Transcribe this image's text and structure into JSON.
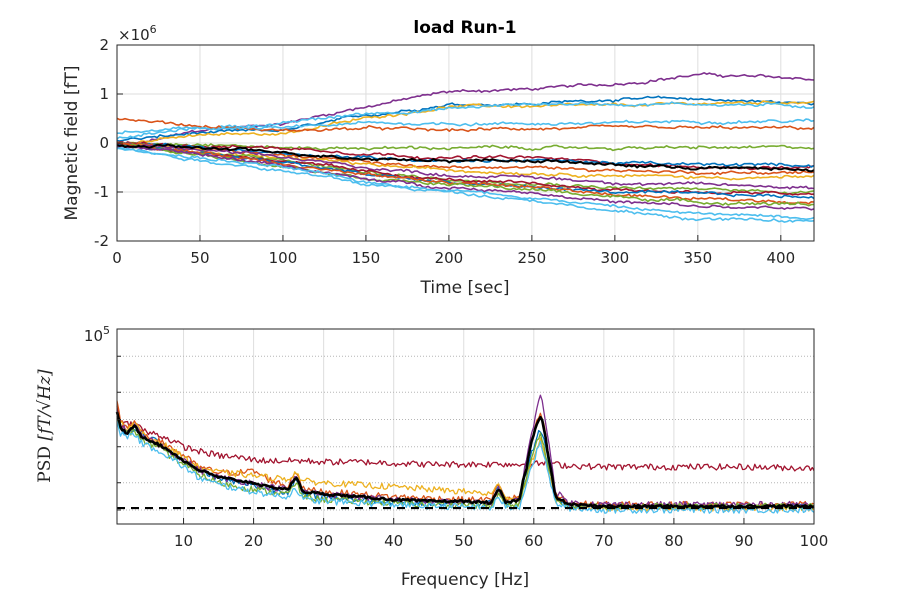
{
  "chart_data": [
    {
      "type": "line",
      "title": "load Run-1",
      "xlabel": "Time [sec]",
      "ylabel": "Magnetic field [fT]",
      "exponent_label": "×10",
      "exponent_power": "6",
      "xlim": [
        0,
        420
      ],
      "ylim": [
        -2,
        2
      ],
      "xticks": [
        0,
        50,
        100,
        150,
        200,
        250,
        300,
        350,
        400
      ],
      "yticks": [
        -2,
        -1,
        0,
        1,
        2
      ],
      "grid": true,
      "legend": "none",
      "x": [
        0,
        50,
        100,
        150,
        200,
        250,
        300,
        350,
        420
      ],
      "series": [
        {
          "color": "#7E2F8E",
          "values": [
            -0.1,
            0.25,
            0.4,
            0.75,
            1.05,
            1.1,
            1.2,
            1.4,
            1.3
          ]
        },
        {
          "color": "#0072BD",
          "values": [
            0.05,
            0.2,
            0.25,
            0.55,
            0.8,
            0.8,
            0.9,
            0.9,
            0.8
          ]
        },
        {
          "color": "#EDB120",
          "values": [
            0.0,
            0.15,
            0.2,
            0.5,
            0.75,
            0.75,
            0.75,
            0.8,
            0.85
          ]
        },
        {
          "color": "#4DBEEE",
          "values": [
            0.1,
            0.3,
            0.4,
            0.6,
            0.7,
            0.8,
            0.8,
            0.8,
            0.75
          ]
        },
        {
          "color": "#D95319",
          "values": [
            0.5,
            0.35,
            0.25,
            0.3,
            0.25,
            0.3,
            0.3,
            0.3,
            0.3
          ]
        },
        {
          "color": "#4DBEEE",
          "values": [
            0.2,
            0.3,
            0.3,
            0.4,
            0.4,
            0.4,
            0.4,
            0.45,
            0.45
          ]
        },
        {
          "color": "#77AC30",
          "values": [
            0.0,
            0.0,
            -0.1,
            -0.1,
            -0.1,
            -0.1,
            -0.1,
            -0.1,
            -0.1
          ]
        },
        {
          "color": "#A2142F",
          "values": [
            0.0,
            -0.05,
            -0.1,
            -0.2,
            -0.3,
            -0.3,
            -0.4,
            -0.5,
            -0.5
          ]
        },
        {
          "color": "#0072BD",
          "values": [
            0.0,
            -0.1,
            -0.2,
            -0.3,
            -0.35,
            -0.35,
            -0.4,
            -0.45,
            -0.45
          ]
        },
        {
          "color": "#D95319",
          "values": [
            0.0,
            -0.1,
            -0.25,
            -0.4,
            -0.5,
            -0.5,
            -0.55,
            -0.6,
            -0.6
          ]
        },
        {
          "color": "#EDB120",
          "values": [
            0.0,
            -0.15,
            -0.3,
            -0.45,
            -0.55,
            -0.6,
            -0.65,
            -0.7,
            -0.7
          ]
        },
        {
          "color": "#7E2F8E",
          "values": [
            0.0,
            -0.15,
            -0.3,
            -0.5,
            -0.65,
            -0.7,
            -0.8,
            -0.85,
            -0.9
          ]
        },
        {
          "color": "#77AC30",
          "values": [
            0.0,
            -0.2,
            -0.35,
            -0.6,
            -0.75,
            -0.8,
            -0.9,
            -0.95,
            -1.0
          ]
        },
        {
          "color": "#A2142F",
          "values": [
            0.0,
            -0.2,
            -0.35,
            -0.6,
            -0.75,
            -0.85,
            -0.95,
            -1.0,
            -1.05
          ]
        },
        {
          "color": "#0072BD",
          "values": [
            -0.05,
            -0.2,
            -0.4,
            -0.65,
            -0.8,
            -0.9,
            -1.0,
            -1.05,
            -1.1
          ]
        },
        {
          "color": "#D95319",
          "values": [
            0.0,
            -0.2,
            -0.4,
            -0.65,
            -0.8,
            -0.9,
            -1.05,
            -1.15,
            -1.2
          ]
        },
        {
          "color": "#77AC30",
          "values": [
            -0.05,
            -0.25,
            -0.45,
            -0.7,
            -0.85,
            -0.95,
            -1.1,
            -1.2,
            -1.25
          ]
        },
        {
          "color": "#7E2F8E",
          "values": [
            -0.05,
            -0.25,
            -0.45,
            -0.75,
            -0.9,
            -1.0,
            -1.2,
            -1.3,
            -1.35
          ]
        },
        {
          "color": "#4DBEEE",
          "values": [
            -0.1,
            -0.3,
            -0.5,
            -0.8,
            -0.95,
            -1.1,
            -1.3,
            -1.45,
            -1.5
          ]
        },
        {
          "color": "#4DBEEE",
          "values": [
            -0.1,
            -0.35,
            -0.55,
            -0.85,
            -1.0,
            -1.15,
            -1.4,
            -1.55,
            -1.6
          ]
        },
        {
          "color": "#000000",
          "values": [
            -0.05,
            -0.1,
            -0.2,
            -0.3,
            -0.35,
            -0.35,
            -0.45,
            -0.5,
            -0.55
          ]
        }
      ]
    },
    {
      "type": "line",
      "xlabel": "Frequency [Hz]",
      "ylabel_prefix": "PSD",
      "ylabel_unit": "[fT/√Hz]",
      "yscale": "log",
      "xlim": [
        0.5,
        100
      ],
      "ylim": [
        700,
        100000
      ],
      "xticks": [
        10,
        20,
        30,
        40,
        50,
        60,
        70,
        80,
        90,
        100
      ],
      "ytick_major_label": "10",
      "ytick_major_power": "5",
      "ytick_major_value": 100000,
      "yminor_ticks": [
        1000,
        2000,
        5000,
        10000,
        20000,
        50000
      ],
      "grid": true,
      "legend": "none",
      "reference_level": 1050,
      "x": [
        0.5,
        1,
        2,
        3,
        4,
        5,
        6,
        8,
        10,
        12,
        15,
        18,
        20,
        22,
        25,
        26,
        27,
        30,
        35,
        40,
        45,
        50,
        54,
        55,
        56,
        58,
        59,
        60,
        61,
        62,
        63,
        65,
        70,
        80,
        90,
        100
      ],
      "series": [
        {
          "color": "#A2142F",
          "values": [
            14000,
            9000,
            9000,
            9000,
            8000,
            7000,
            7000,
            6000,
            5000,
            4500,
            4000,
            3800,
            3600,
            3500,
            3500,
            3500,
            3500,
            3400,
            3400,
            3300,
            3200,
            3200,
            3200,
            3300,
            3200,
            3200,
            3200,
            3200,
            3300,
            3300,
            3200,
            3100,
            3000,
            3000,
            3000,
            2900
          ]
        },
        {
          "color": "#0072BD",
          "values": [
            11000,
            8000,
            7000,
            8000,
            7000,
            6000,
            6000,
            4500,
            3500,
            2800,
            2200,
            2000,
            1900,
            1700,
            1600,
            2200,
            1500,
            1400,
            1300,
            1250,
            1200,
            1200,
            1200,
            1800,
            1200,
            1300,
            2500,
            5000,
            8000,
            3500,
            1400,
            1100,
            1100,
            1100,
            1100,
            1100
          ]
        },
        {
          "color": "#D95319",
          "values": [
            16000,
            10000,
            8000,
            9000,
            7000,
            6500,
            6000,
            5000,
            4000,
            3000,
            2600,
            2600,
            2700,
            2200,
            1800,
            2800,
            1700,
            1600,
            1500,
            1400,
            1350,
            1300,
            1300,
            2000,
            1300,
            1400,
            3000,
            7000,
            12000,
            4000,
            1500,
            1200,
            1150,
            1150,
            1150,
            1150
          ]
        },
        {
          "color": "#EDB120",
          "values": [
            13000,
            9000,
            8000,
            9000,
            7000,
            6000,
            6000,
            4800,
            3800,
            3000,
            2600,
            2500,
            2400,
            2300,
            2200,
            2600,
            2100,
            2000,
            1900,
            1800,
            1700,
            1600,
            1500,
            1900,
            1400,
            1300,
            2000,
            4000,
            6000,
            2800,
            1300,
            1100,
            1050,
            1050,
            1050,
            1050
          ]
        },
        {
          "color": "#7E2F8E",
          "values": [
            12000,
            8500,
            7500,
            8500,
            6500,
            6000,
            5500,
            4500,
            3600,
            2800,
            2300,
            2100,
            2000,
            1800,
            1700,
            2400,
            1600,
            1500,
            1400,
            1300,
            1250,
            1200,
            1200,
            1700,
            1200,
            1300,
            3500,
            9000,
            18000,
            6000,
            1600,
            1200,
            1150,
            1150,
            1150,
            1150
          ]
        },
        {
          "color": "#77AC30",
          "values": [
            10000,
            7500,
            7000,
            7500,
            6000,
            5500,
            5000,
            4000,
            3200,
            2500,
            2000,
            1800,
            1700,
            1600,
            1500,
            2000,
            1400,
            1300,
            1250,
            1200,
            1150,
            1150,
            1100,
            1500,
            1100,
            1200,
            2200,
            4500,
            7000,
            3000,
            1300,
            1100,
            1100,
            1100,
            1100,
            1100
          ]
        },
        {
          "color": "#4DBEEE",
          "values": [
            9000,
            7000,
            6500,
            7000,
            5500,
            5000,
            4800,
            3800,
            3000,
            2300,
            1900,
            1700,
            1600,
            1500,
            1400,
            1800,
            1300,
            1250,
            1200,
            1150,
            1100,
            1100,
            1050,
            1400,
            1050,
            1100,
            2000,
            3500,
            5500,
            2500,
            1200,
            1050,
            1000,
            1000,
            1000,
            1000
          ]
        },
        {
          "color": "#000000",
          "values": [
            12000,
            8000,
            7000,
            8500,
            6500,
            6000,
            5500,
            4500,
            3500,
            2800,
            2300,
            2100,
            2000,
            1800,
            1700,
            2300,
            1600,
            1500,
            1400,
            1300,
            1250,
            1250,
            1200,
            1700,
            1200,
            1300,
            3000,
            7000,
            11000,
            4000,
            1400,
            1150,
            1100,
            1100,
            1100,
            1100
          ]
        }
      ]
    }
  ]
}
